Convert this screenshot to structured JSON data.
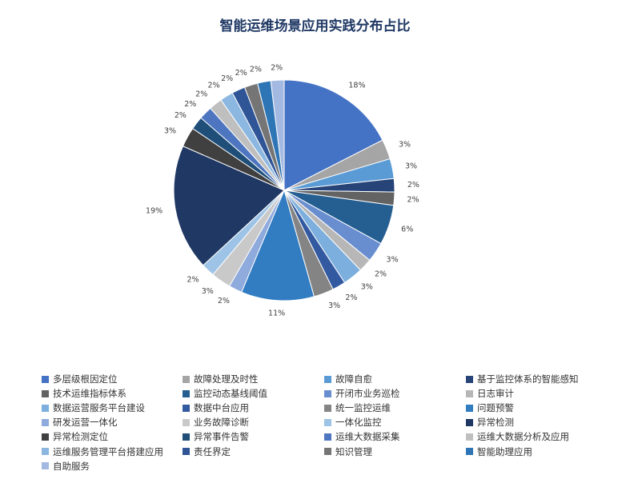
{
  "chart_data": {
    "type": "pie",
    "title": "智能运维场景应用实践分布占比",
    "slices": [
      {
        "label": "多层级根因定位",
        "value": 18,
        "color": "#4472c4"
      },
      {
        "label": "故障处理及时性",
        "value": 3,
        "color": "#a5a5a5"
      },
      {
        "label": "故障自愈",
        "value": 3,
        "color": "#5b9bd5"
      },
      {
        "label": "基于监控体系的智能感知",
        "value": 2,
        "color": "#264478"
      },
      {
        "label": "技术运维指标体系",
        "value": 2,
        "color": "#636363"
      },
      {
        "label": "监控动态基线阈值",
        "value": 6,
        "color": "#255e91"
      },
      {
        "label": "开闭市业务巡检",
        "value": 3,
        "color": "#698ed0"
      },
      {
        "label": "日志审计",
        "value": 2,
        "color": "#b7b7b7"
      },
      {
        "label": "数据运营服务平台建设",
        "value": 3,
        "color": "#7cafdd"
      },
      {
        "label": "数据中台应用",
        "value": 2,
        "color": "#335aa1"
      },
      {
        "label": "统一监控运维",
        "value": 3,
        "color": "#848484"
      },
      {
        "label": "问题预警",
        "value": 11,
        "color": "#327dc2"
      },
      {
        "label": "研发运营一体化",
        "value": 2,
        "color": "#8faadc"
      },
      {
        "label": "业务故障诊断",
        "value": 3,
        "color": "#c9c9c9"
      },
      {
        "label": "一体化监控",
        "value": 2,
        "color": "#9dc3e6"
      },
      {
        "label": "异常检测",
        "value": 19,
        "color": "#203864"
      },
      {
        "label": "异常检测定位",
        "value": 3,
        "color": "#404040"
      },
      {
        "label": "异常事件告警",
        "value": 2,
        "color": "#1f4e79"
      },
      {
        "label": "运维大数据采集",
        "value": 2,
        "color": "#4e76c0"
      },
      {
        "label": "运维大数据分析及应用",
        "value": 2,
        "color": "#bfbfbf"
      },
      {
        "label": "运维服务管理平台搭建应用",
        "value": 2,
        "color": "#8bb7e0"
      },
      {
        "label": "责任界定",
        "value": 2,
        "color": "#2f5597"
      },
      {
        "label": "知识管理",
        "value": 2,
        "color": "#757575"
      },
      {
        "label": "智能助理应用",
        "value": 2,
        "color": "#2e75b6"
      },
      {
        "label": "自助服务",
        "value": 2,
        "color": "#a4b9e1"
      }
    ],
    "data_label_suffix": "%",
    "legend_position": "bottom"
  }
}
